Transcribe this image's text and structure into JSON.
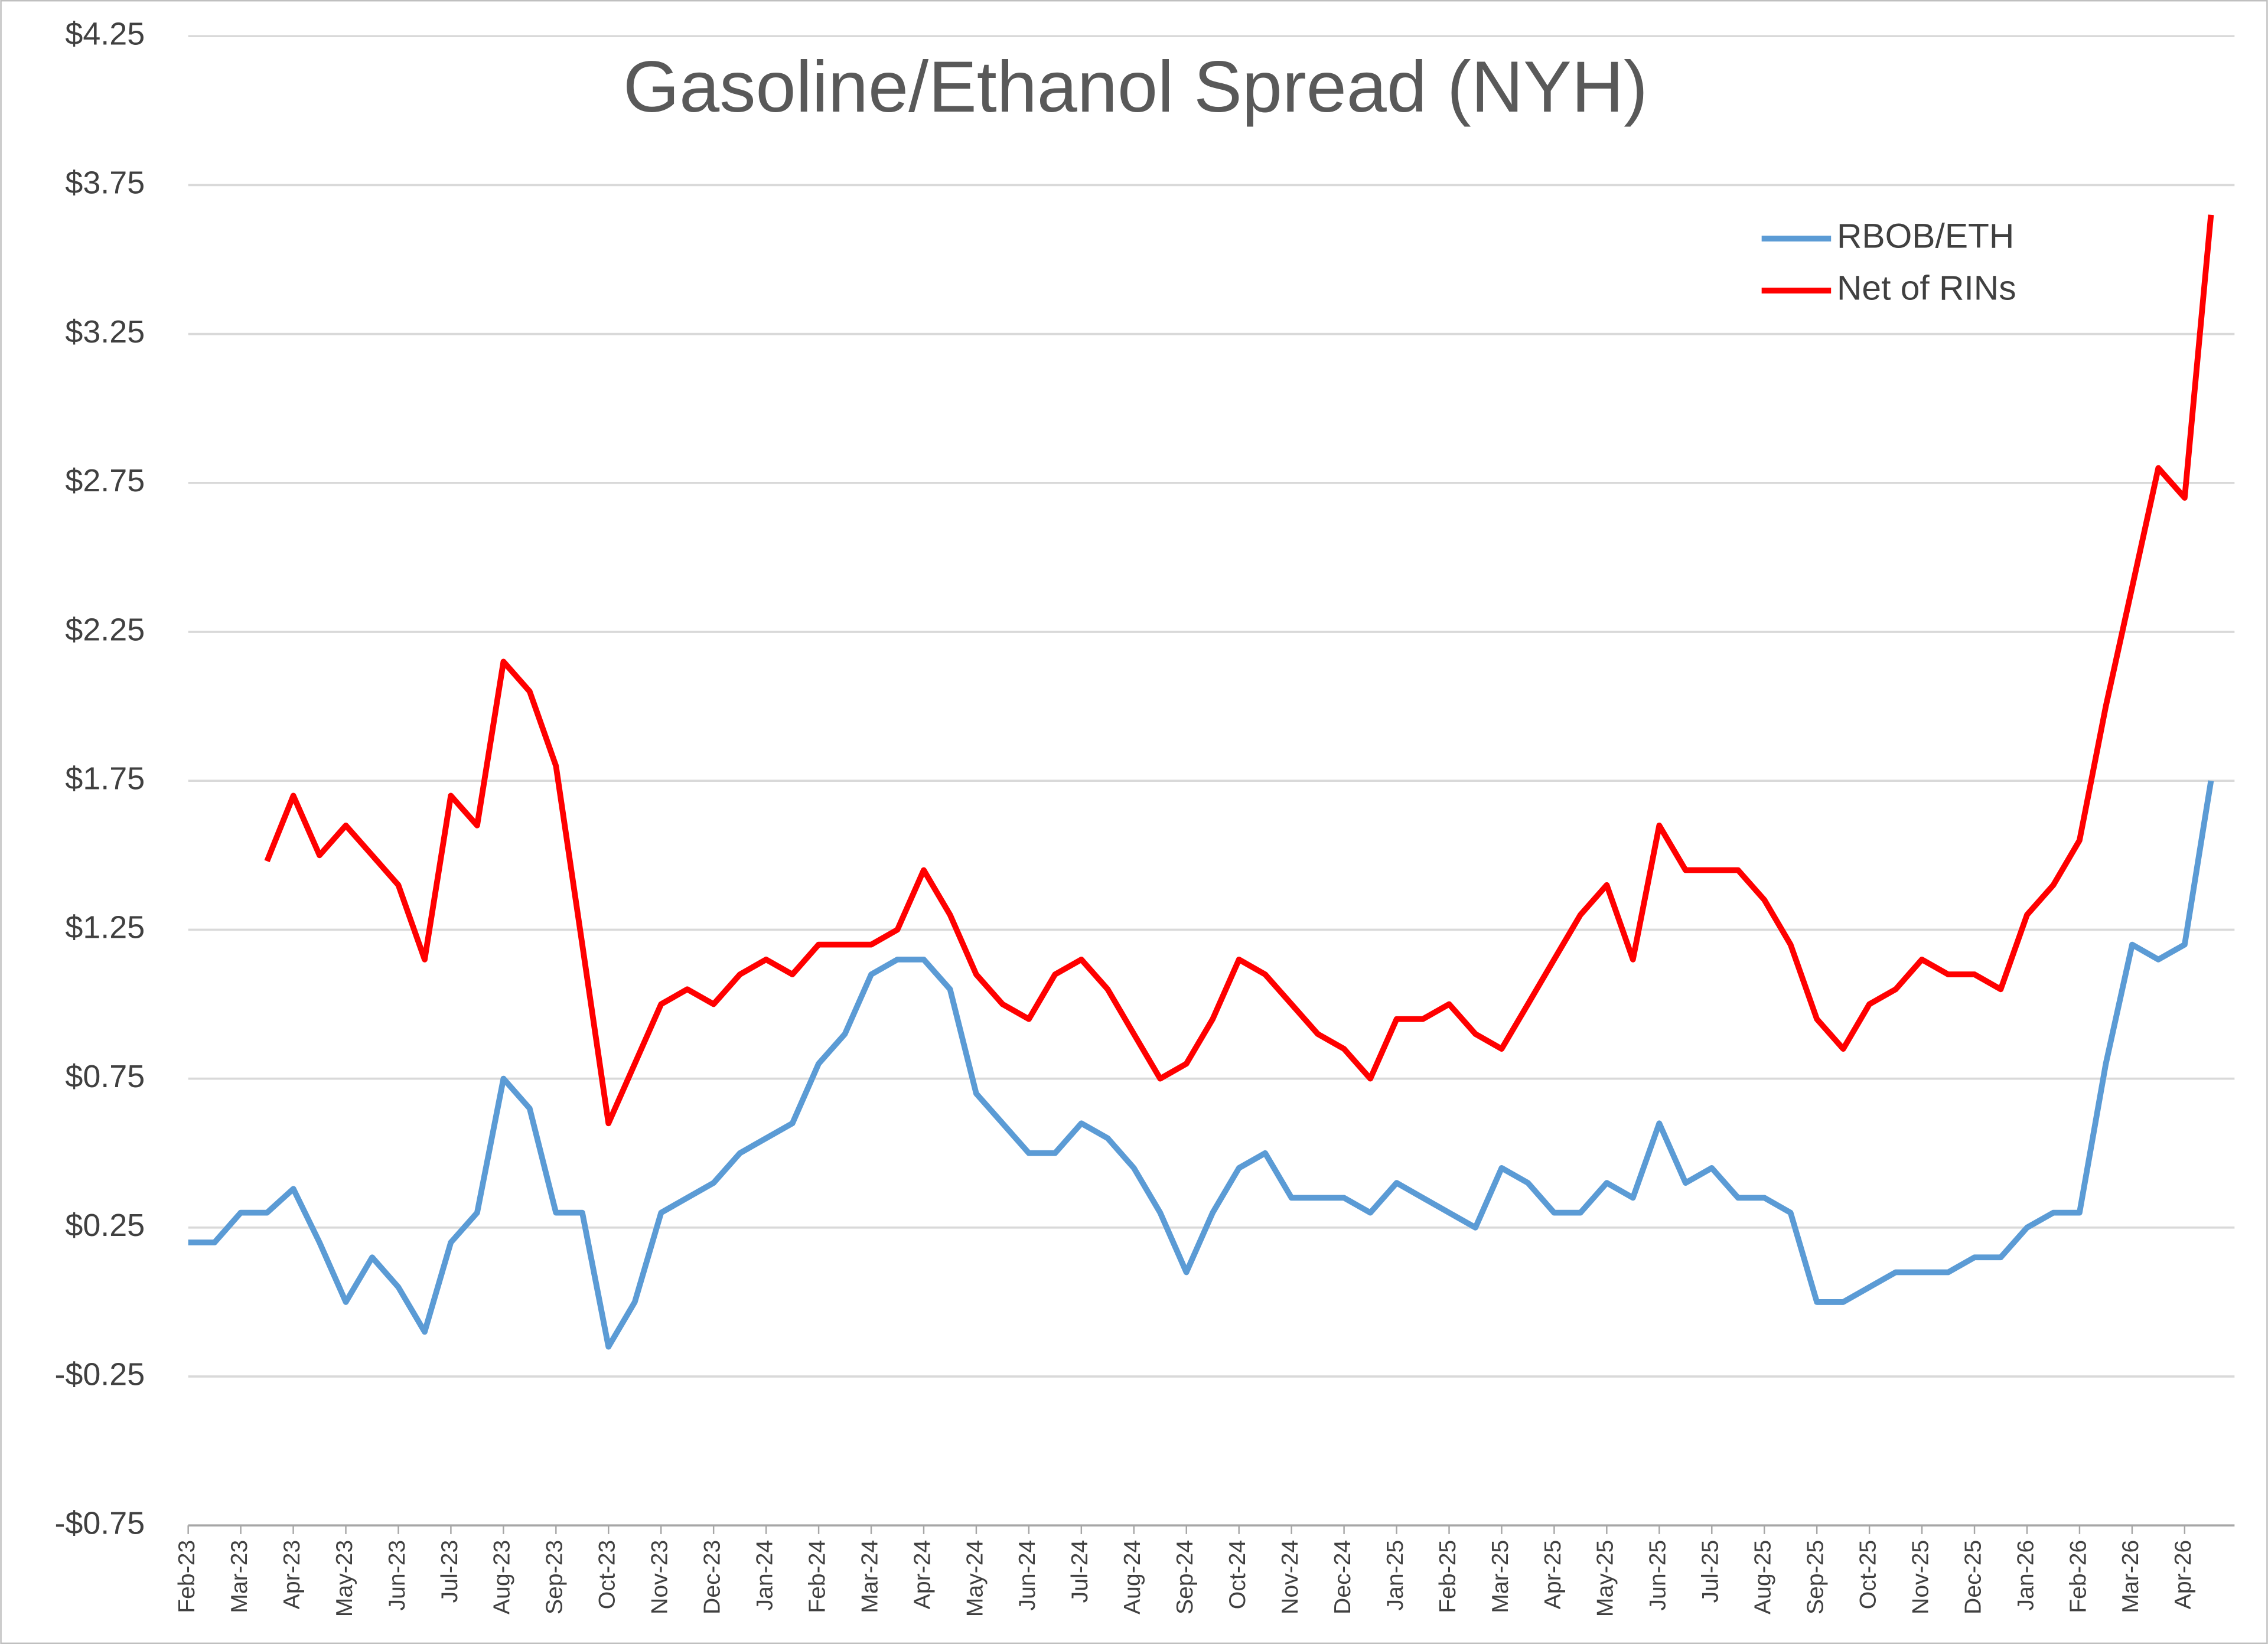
{
  "chart_data": {
    "type": "line",
    "title": "Gasoline/Ethanol Spread (NYH)",
    "categories": [
      "Feb-23",
      null,
      "Mar-23",
      null,
      "Apr-23",
      null,
      "May-23",
      null,
      "Jun-23",
      null,
      "Jul-23",
      null,
      "Aug-23",
      null,
      "Sep-23",
      null,
      "Oct-23",
      null,
      "Nov-23",
      null,
      "Dec-23",
      null,
      "Jan-24",
      null,
      "Feb-24",
      null,
      "Mar-24",
      null,
      "Apr-24",
      null,
      "May-24",
      null,
      "Jun-24",
      null,
      "Jul-24",
      null,
      "Aug-24",
      null,
      "Sep-24",
      null,
      "Oct-24",
      null,
      "Nov-24",
      null,
      "Dec-24",
      null,
      "Jan-25",
      null,
      "Feb-25",
      null,
      "Mar-25",
      null,
      "Apr-25",
      null,
      "May-25",
      null,
      "Jun-25",
      null,
      "Jul-25",
      null,
      "Aug-25",
      null,
      "Sep-25",
      null,
      "Oct-25",
      null,
      "Nov-25",
      null,
      "Dec-25",
      null,
      "Jan-26",
      null,
      "Feb-26",
      null,
      "Mar-26",
      null,
      "Apr-26",
      null
    ],
    "series": [
      {
        "name": "RBOB/ETH",
        "color": "#5b9bd5",
        "values": [
          0.2,
          0.2,
          0.3,
          0.3,
          0.38,
          0.2,
          0.0,
          0.15,
          0.05,
          -0.1,
          0.2,
          0.3,
          0.75,
          0.65,
          0.3,
          0.3,
          -0.15,
          0.0,
          0.3,
          0.35,
          0.4,
          0.5,
          0.55,
          0.6,
          0.8,
          0.9,
          1.1,
          1.15,
          1.15,
          1.05,
          0.7,
          0.6,
          0.5,
          0.5,
          0.6,
          0.55,
          0.45,
          0.3,
          0.1,
          0.3,
          0.45,
          0.5,
          0.35,
          0.35,
          0.35,
          0.3,
          0.4,
          0.35,
          0.3,
          0.25,
          0.45,
          0.4,
          0.3,
          0.3,
          0.4,
          0.35,
          0.6,
          0.4,
          0.45,
          0.35,
          0.35,
          0.3,
          0.0,
          0.0,
          0.05,
          0.1,
          0.1,
          0.1,
          0.15,
          0.15,
          0.25,
          0.3,
          0.3,
          0.8,
          1.2,
          1.15,
          1.2,
          1.75
        ]
      },
      {
        "name": "Net of RINs",
        "color": "#ff0000",
        "values": [
          null,
          null,
          null,
          1.48,
          1.7,
          1.5,
          1.6,
          1.5,
          1.4,
          1.15,
          1.7,
          1.6,
          2.15,
          2.05,
          1.8,
          1.2,
          0.6,
          0.8,
          1.0,
          1.05,
          1.0,
          1.1,
          1.15,
          1.1,
          1.2,
          1.2,
          1.2,
          1.25,
          1.45,
          1.3,
          1.1,
          1.0,
          0.95,
          1.1,
          1.15,
          1.05,
          0.9,
          0.75,
          0.8,
          0.95,
          1.15,
          1.1,
          1.0,
          0.9,
          0.85,
          0.75,
          0.95,
          0.95,
          1.0,
          0.9,
          0.85,
          1.0,
          1.15,
          1.3,
          1.4,
          1.15,
          1.6,
          1.45,
          1.45,
          1.45,
          1.35,
          1.2,
          0.95,
          0.85,
          1.0,
          1.05,
          1.15,
          1.1,
          1.1,
          1.05,
          1.3,
          1.4,
          1.55,
          2.0,
          2.4,
          2.8,
          2.7,
          3.65
        ]
      }
    ],
    "ylim": [
      -0.75,
      4.25
    ],
    "yticks": [
      {
        "value": -0.75,
        "label": "-$0.75"
      },
      {
        "value": -0.25,
        "label": "-$0.25"
      },
      {
        "value": 0.25,
        "label": "$0.25"
      },
      {
        "value": 0.75,
        "label": "$0.75"
      },
      {
        "value": 1.25,
        "label": "$1.25"
      },
      {
        "value": 1.75,
        "label": "$1.75"
      },
      {
        "value": 2.25,
        "label": "$2.25"
      },
      {
        "value": 2.75,
        "label": "$2.75"
      },
      {
        "value": 3.25,
        "label": "$3.25"
      },
      {
        "value": 3.75,
        "label": "$3.75"
      },
      {
        "value": 4.25,
        "label": "$4.25"
      }
    ],
    "grid": true,
    "legend": "upper right"
  }
}
